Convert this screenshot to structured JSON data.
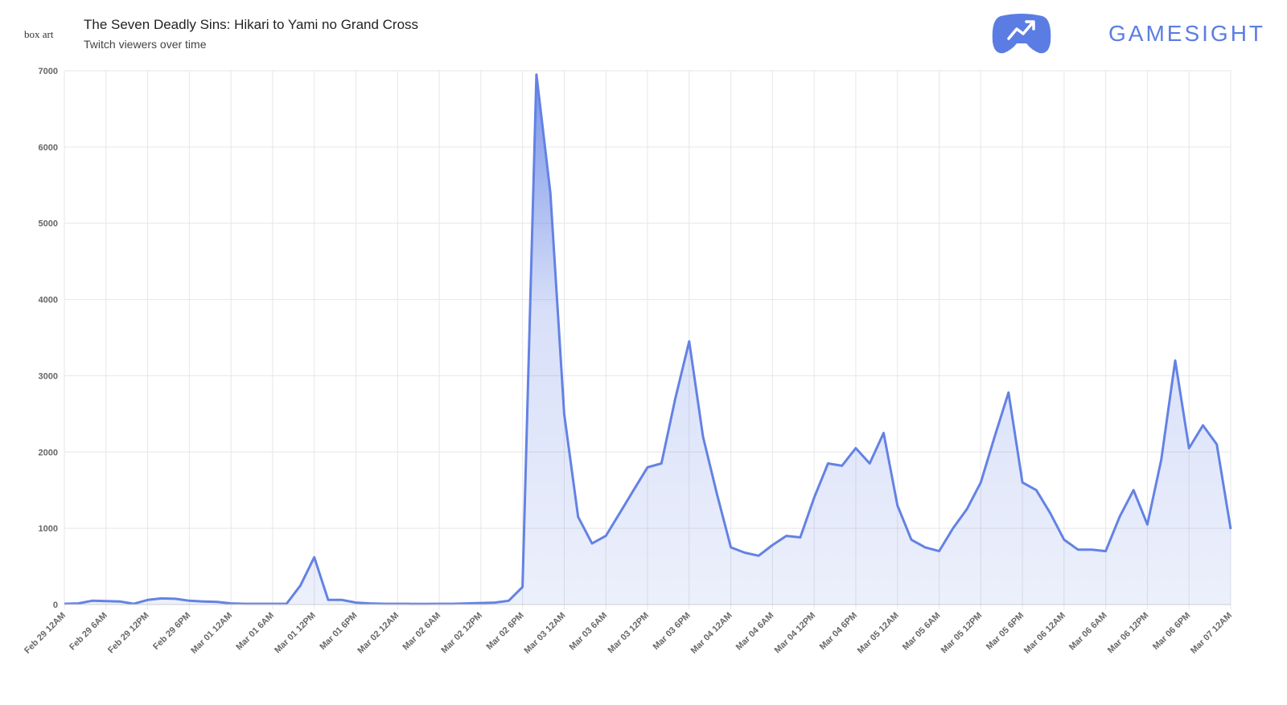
{
  "header": {
    "image_alt": "box art",
    "brand": "GAMESIGHT"
  },
  "chart_data": {
    "type": "line",
    "title": "The Seven Deadly Sins: Hikari to Yami no Grand Cross",
    "subtitle": "Twitch viewers over time",
    "categories": [
      "Feb 29 12AM",
      null,
      null,
      "Feb 29 6AM",
      null,
      null,
      "Feb 29 12PM",
      null,
      null,
      "Feb 29 6PM",
      null,
      null,
      "Mar 01 12AM",
      null,
      null,
      "Mar 01 6AM",
      null,
      null,
      "Mar 01 12PM",
      null,
      null,
      "Mar 01 6PM",
      null,
      null,
      "Mar 02 12AM",
      null,
      null,
      "Mar 02 6AM",
      null,
      null,
      "Mar 02 12PM",
      null,
      null,
      "Mar 02 6PM",
      null,
      null,
      "Mar 03 12AM",
      null,
      null,
      "Mar 03 6AM",
      null,
      null,
      "Mar 03 12PM",
      null,
      null,
      "Mar 03 6PM",
      null,
      null,
      "Mar 04 12AM",
      null,
      null,
      "Mar 04 6AM",
      null,
      null,
      "Mar 04 12PM",
      null,
      null,
      "Mar 04 6PM",
      null,
      null,
      "Mar 05 12AM",
      null,
      null,
      "Mar 05 6AM",
      null,
      null,
      "Mar 05 12PM",
      null,
      null,
      "Mar 05 6PM",
      null,
      null,
      "Mar 06 12AM",
      null,
      null,
      "Mar 06 6AM",
      null,
      null,
      "Mar 06 12PM",
      null,
      null,
      "Mar 06 6PM",
      null,
      null,
      "Mar 07 12AM"
    ],
    "values": [
      10,
      15,
      50,
      45,
      40,
      10,
      60,
      80,
      75,
      50,
      40,
      35,
      15,
      10,
      10,
      10,
      10,
      250,
      620,
      60,
      60,
      25,
      15,
      10,
      10,
      8,
      8,
      10,
      10,
      15,
      20,
      25,
      50,
      230,
      6950,
      5400,
      2500,
      1150,
      800,
      900,
      1200,
      1500,
      1800,
      1850,
      2700,
      3450,
      2200,
      1450,
      750,
      680,
      640,
      780,
      900,
      880,
      1400,
      1850,
      1820,
      2050,
      1850,
      2250,
      1300,
      850,
      750,
      700,
      1000,
      1250,
      1600,
      2200,
      2780,
      1600,
      1500,
      1200,
      850,
      720,
      720,
      700,
      1150,
      1500,
      1050,
      1900,
      3200,
      2050,
      2350,
      2100,
      990
    ],
    "color": "#6382e4",
    "ylim": [
      0,
      7000
    ],
    "yticks": [
      0,
      1000,
      2000,
      3000,
      4000,
      5000,
      6000,
      7000
    ],
    "grid": true
  }
}
